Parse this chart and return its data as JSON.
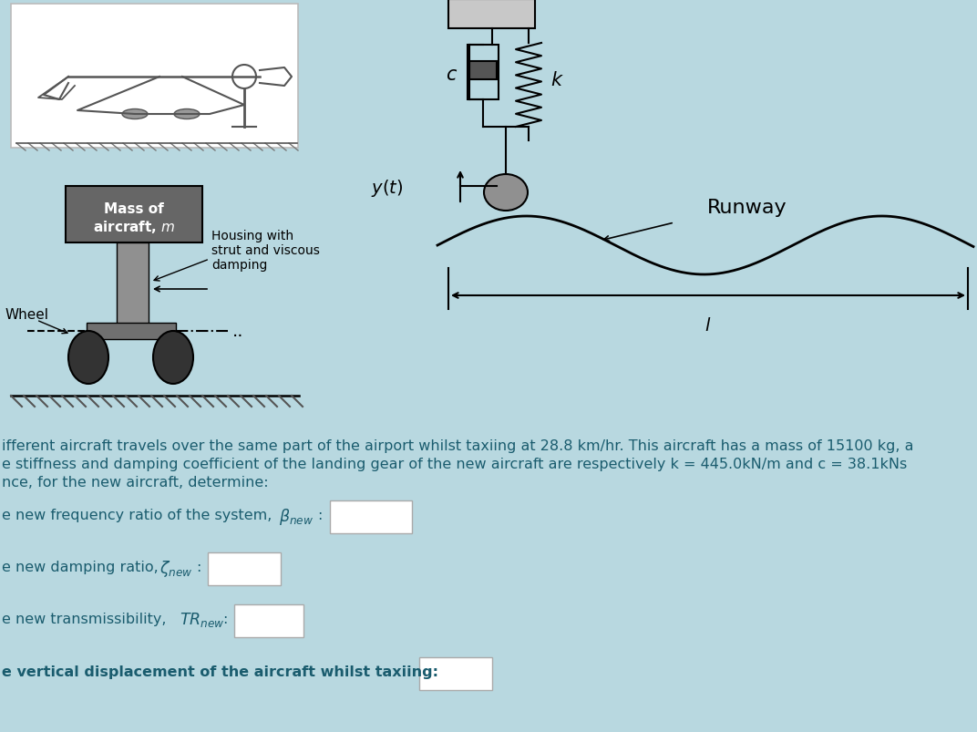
{
  "bg_color": "#b8d8e0",
  "fig_width": 10.72,
  "fig_height": 8.04,
  "text_color": "#1a5c6e",
  "line1": "ifferent aircraft travels over the same part of the airport whilst taxiing at 28.8 km/hr. This aircraft has a mass of 15100 kg, a",
  "line2": "e stiffness and damping coefficient of the landing gear of the new aircraft are respectively k = 445.0kN/m and c = 38.1kNs",
  "line3": "nce, for the new aircraft, determine:",
  "label_disp": "e vertical displacement of the aircraft whilst taxiing:"
}
